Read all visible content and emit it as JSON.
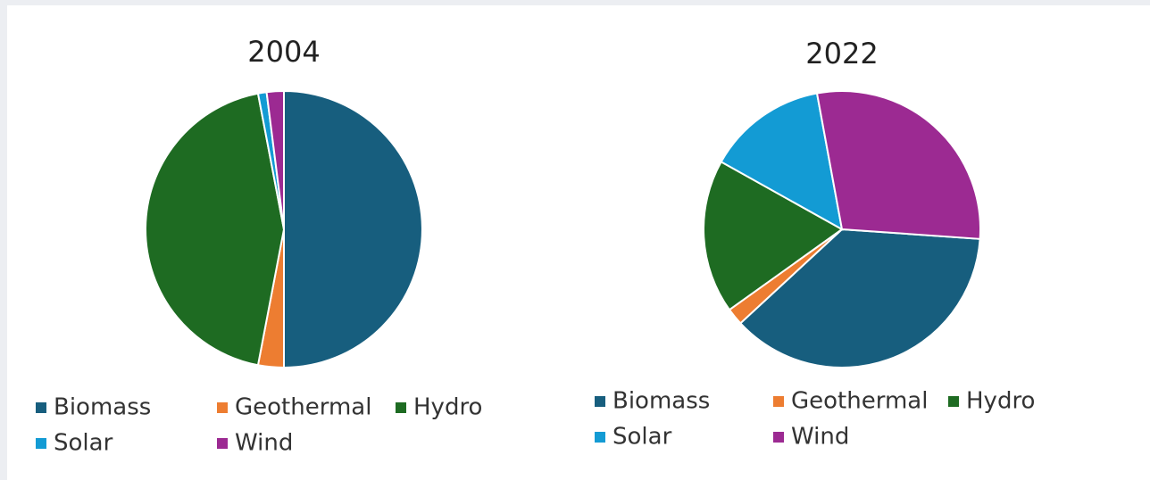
{
  "chart_data": [
    {
      "type": "pie",
      "title": "2004",
      "categories": [
        "Biomass",
        "Geothermal",
        "Hydro",
        "Solar",
        "Wind"
      ],
      "values": [
        50,
        3,
        44,
        1,
        2
      ],
      "colors": [
        "#175e7e",
        "#ed7d31",
        "#1e6b22",
        "#139bd4",
        "#9c2a92"
      ]
    },
    {
      "type": "pie",
      "title": "2022",
      "categories": [
        "Biomass",
        "Geothermal",
        "Hydro",
        "Solar",
        "Wind"
      ],
      "values": [
        37,
        2,
        18,
        14,
        29
      ],
      "colors": [
        "#175e7e",
        "#ed7d31",
        "#1e6b22",
        "#139bd4",
        "#9c2a92"
      ]
    }
  ]
}
